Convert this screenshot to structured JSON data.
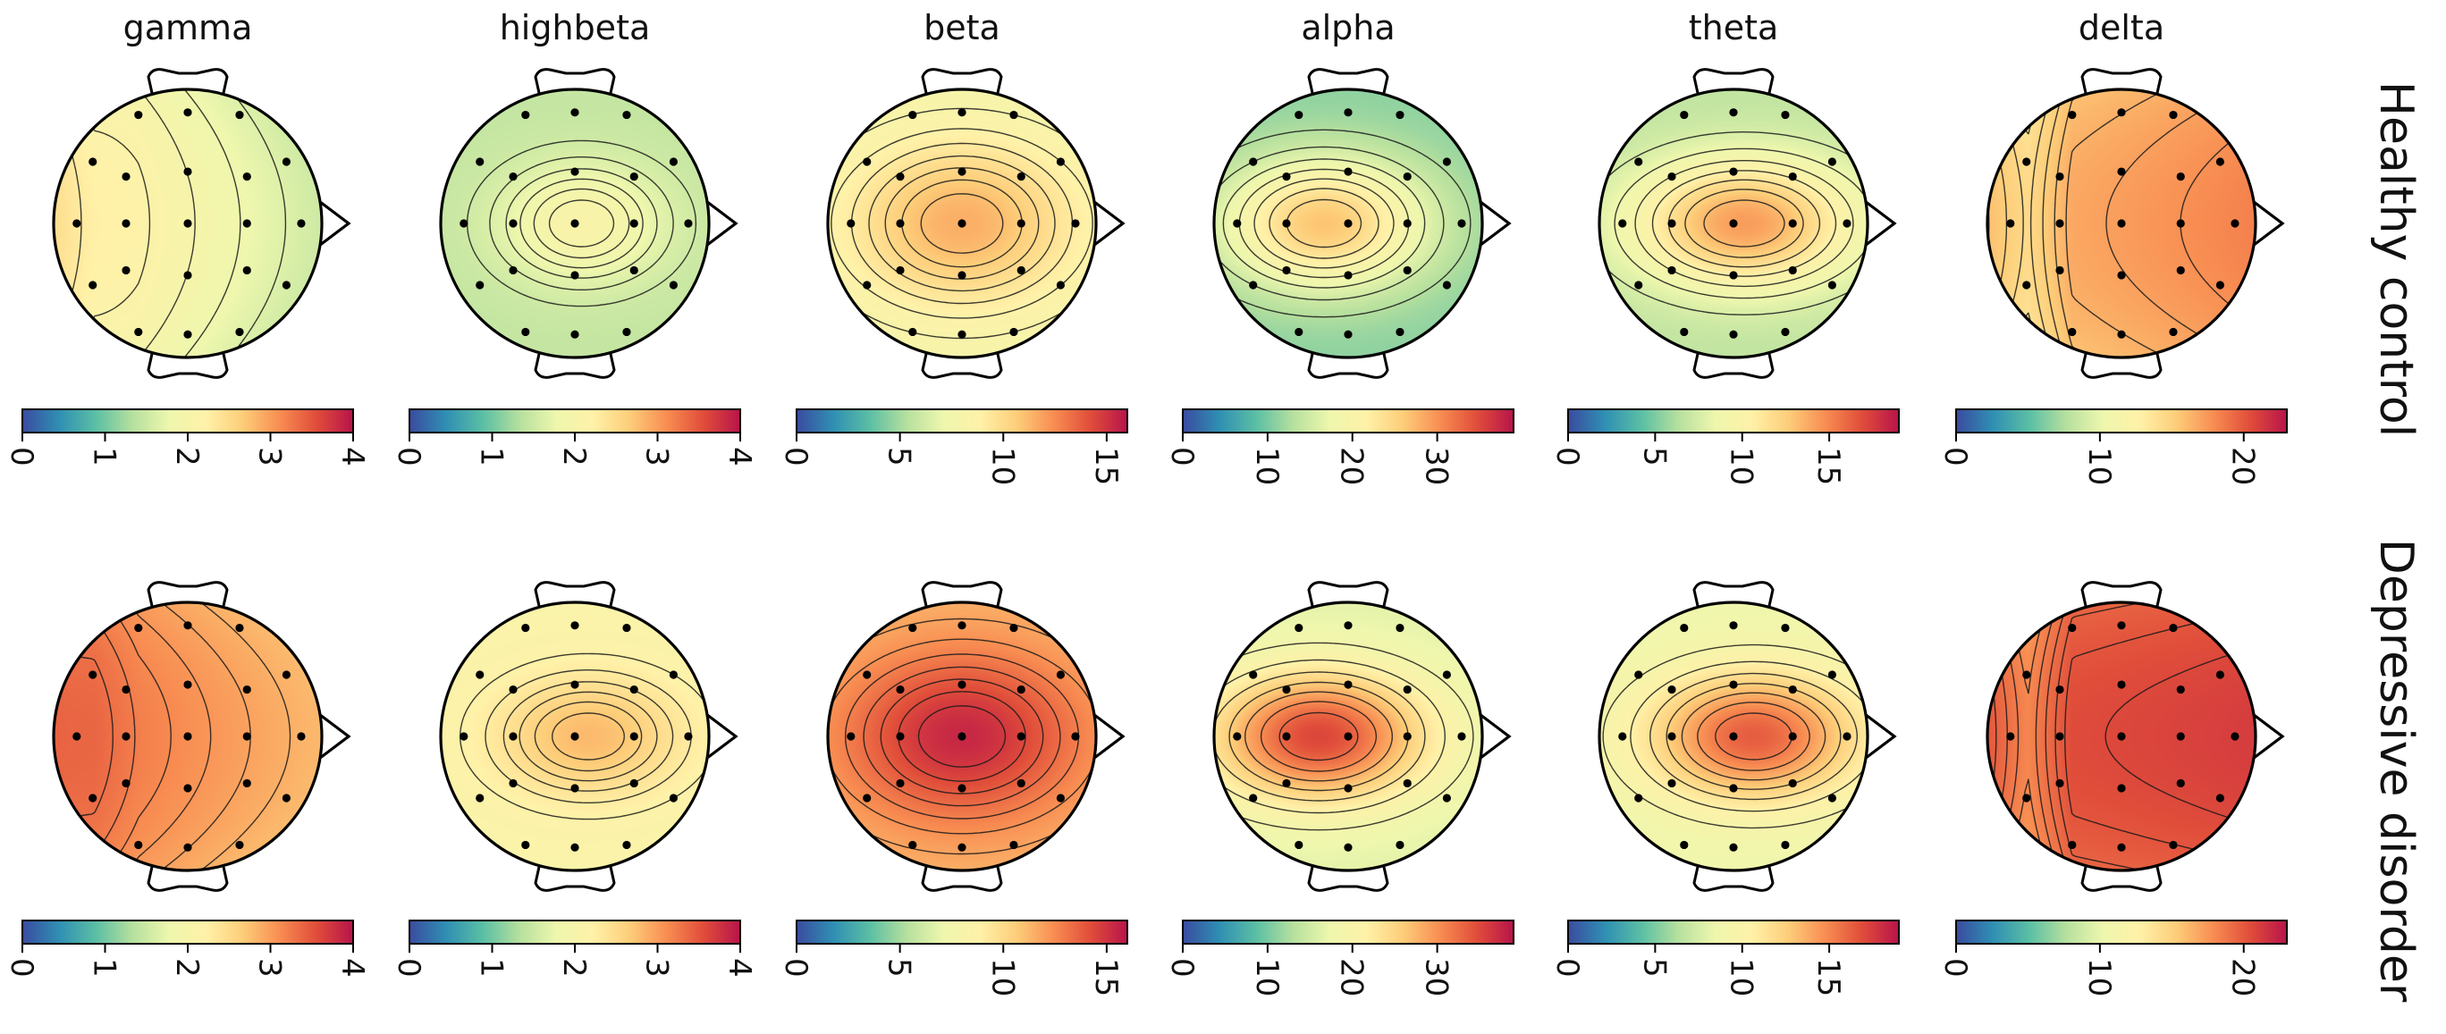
{
  "chart_data": {
    "type": "heatmap",
    "description_kind": "EEG topographic maps of band power",
    "bands": [
      "gamma",
      "highbeta",
      "beta",
      "alpha",
      "theta",
      "delta"
    ],
    "groups": [
      "Healthy control",
      "Depressive disorder"
    ],
    "colormap": "Spectral_r",
    "colormap_stops": [
      "#3a4ba0",
      "#2f8fb3",
      "#5bbfa4",
      "#b6e09e",
      "#eef7ad",
      "#fff1a8",
      "#fdcd79",
      "#f88d52",
      "#e04d3a",
      "#b8134a"
    ],
    "colorbars": [
      {
        "band": "gamma",
        "range": [
          0,
          4
        ],
        "ticks": [
          "0",
          "1",
          "2",
          "3",
          "4"
        ],
        "tick_values": [
          0,
          1,
          2,
          3,
          4
        ]
      },
      {
        "band": "highbeta",
        "range": [
          0,
          4
        ],
        "ticks": [
          "0",
          "1",
          "2",
          "3",
          "4"
        ],
        "tick_values": [
          0,
          1,
          2,
          3,
          4
        ]
      },
      {
        "band": "beta",
        "range": [
          0,
          16
        ],
        "ticks": [
          "0",
          "5",
          "10",
          "15"
        ],
        "tick_values": [
          0,
          5,
          10,
          15
        ]
      },
      {
        "band": "alpha",
        "range": [
          0,
          39
        ],
        "ticks": [
          "0",
          "10",
          "20",
          "30"
        ],
        "tick_values": [
          0,
          10,
          20,
          30
        ]
      },
      {
        "band": "theta",
        "range": [
          0,
          19
        ],
        "ticks": [
          "0",
          "5",
          "10",
          "15"
        ],
        "tick_values": [
          0,
          5,
          10,
          15
        ]
      },
      {
        "band": "delta",
        "range": [
          0,
          23
        ],
        "ticks": [
          "0",
          "10",
          "20"
        ],
        "tick_values": [
          0,
          10,
          20
        ]
      }
    ],
    "maps": [
      {
        "group": "Healthy control",
        "band": "gamma",
        "pattern": "lr",
        "params": [
          0.48,
          0.38,
          0.62
        ],
        "contours": 6
      },
      {
        "group": "Healthy control",
        "band": "highbeta",
        "pattern": "blob",
        "params": [
          0.36,
          0.52,
          0.58,
          0.05,
          0.42
        ],
        "contours": 6
      },
      {
        "group": "Healthy control",
        "band": "beta",
        "pattern": "blob",
        "params": [
          0.48,
          0.72,
          0.8,
          0.0,
          0.58
        ],
        "contours": 7
      },
      {
        "group": "Healthy control",
        "band": "alpha",
        "pattern": "blob",
        "params": [
          0.28,
          0.68,
          0.72,
          -0.18,
          0.46
        ],
        "contours": 7
      },
      {
        "group": "Healthy control",
        "band": "theta",
        "pattern": "blob",
        "params": [
          0.35,
          0.75,
          0.78,
          0.08,
          0.45
        ],
        "contours": 7
      },
      {
        "group": "Healthy control",
        "band": "delta",
        "pattern": "lr",
        "params": [
          0.36,
          0.8,
          0.7
        ],
        "contours": 7
      },
      {
        "group": "Depressive disorder",
        "band": "gamma",
        "pattern": "lr",
        "params": [
          0.9,
          0.7,
          0.85
        ],
        "contours": 8
      },
      {
        "group": "Depressive disorder",
        "band": "highbeta",
        "pattern": "blob",
        "params": [
          0.52,
          0.7,
          0.65,
          0.1,
          0.42
        ],
        "contours": 6
      },
      {
        "group": "Depressive disorder",
        "band": "beta",
        "pattern": "blob",
        "params": [
          0.7,
          0.96,
          0.85,
          0.0,
          0.6
        ],
        "contours": 7
      },
      {
        "group": "Depressive disorder",
        "band": "alpha",
        "pattern": "blob",
        "params": [
          0.42,
          0.9,
          0.76,
          -0.22,
          0.46
        ],
        "contours": 7
      },
      {
        "group": "Depressive disorder",
        "band": "theta",
        "pattern": "blob",
        "params": [
          0.45,
          0.86,
          0.74,
          0.15,
          0.45
        ],
        "contours": 7
      },
      {
        "group": "Depressive disorder",
        "band": "delta",
        "pattern": "lr",
        "params": [
          0.5,
          0.92,
          0.88
        ],
        "contours": 7
      }
    ],
    "xlabel": "",
    "ylabel": ""
  }
}
